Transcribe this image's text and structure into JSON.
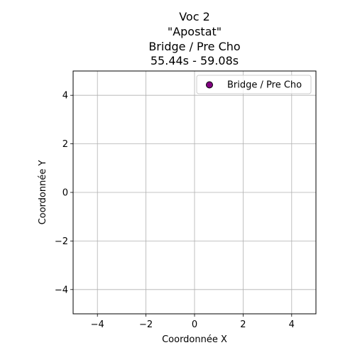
{
  "chart_data": {
    "type": "scatter",
    "title": [
      "Voc 2",
      "\"Apostat\"",
      "Bridge / Pre Cho",
      "55.44s - 59.08s"
    ],
    "xlabel": "Coordonnée X",
    "ylabel": "Coordonnée Y",
    "xlim": [
      -5,
      5
    ],
    "ylim": [
      -5,
      5
    ],
    "xticks": [
      -4,
      -2,
      0,
      2,
      4
    ],
    "yticks": [
      -4,
      -2,
      0,
      2,
      4
    ],
    "xtick_labels": [
      "−4",
      "−2",
      "0",
      "2",
      "4"
    ],
    "ytick_labels": [
      "−4",
      "−2",
      "0",
      "2",
      "4"
    ],
    "grid": true,
    "legend_position": "top-right",
    "series": [
      {
        "name": "Bridge / Pre Cho",
        "color": "#800080",
        "edge_color": "#000000",
        "points": []
      }
    ]
  }
}
